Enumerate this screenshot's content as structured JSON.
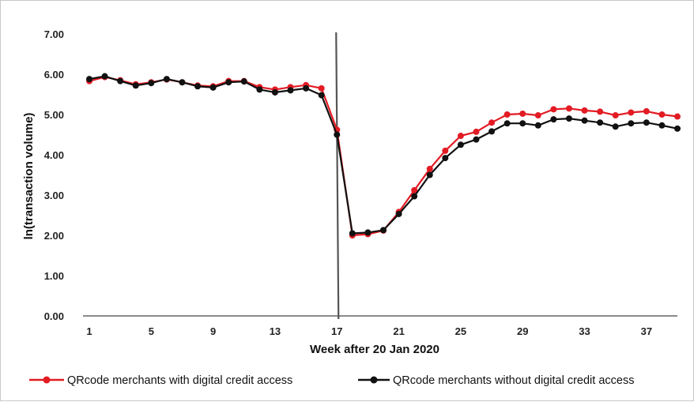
{
  "chart_data": {
    "type": "line",
    "xlabel": "Week after 20 Jan 2020",
    "ylabel": "ln(transaction volume)",
    "ylim": [
      0,
      7
    ],
    "xlim": [
      1,
      39
    ],
    "yticks": [
      "0.00",
      "1.00",
      "2.00",
      "3.00",
      "4.00",
      "5.00",
      "6.00",
      "7.00"
    ],
    "xticks": [
      "1",
      "5",
      "9",
      "13",
      "17",
      "21",
      "25",
      "29",
      "33",
      "37"
    ],
    "vertical_marker_week": 17,
    "grid": false,
    "legend_position": "bottom",
    "x": [
      1,
      2,
      3,
      4,
      5,
      6,
      7,
      8,
      9,
      10,
      11,
      12,
      13,
      14,
      15,
      16,
      17,
      18,
      19,
      20,
      21,
      22,
      23,
      24,
      25,
      26,
      27,
      28,
      29,
      30,
      31,
      32,
      33,
      34,
      35,
      36,
      37,
      38,
      39
    ],
    "series": [
      {
        "name": "QRcode merchants with digital credit access",
        "color": "#e31b23",
        "values": [
          5.83,
          5.93,
          5.85,
          5.75,
          5.8,
          5.87,
          5.8,
          5.72,
          5.7,
          5.83,
          5.83,
          5.68,
          5.62,
          5.68,
          5.73,
          5.65,
          4.62,
          2.0,
          2.03,
          2.12,
          2.58,
          3.12,
          3.65,
          4.1,
          4.47,
          4.57,
          4.8,
          5.0,
          5.02,
          4.98,
          5.13,
          5.15,
          5.1,
          5.07,
          4.98,
          5.05,
          5.08,
          5.0,
          4.95
        ]
      },
      {
        "name": "QRcode merchants without digital credit access",
        "color": "#111111",
        "values": [
          5.88,
          5.95,
          5.83,
          5.72,
          5.78,
          5.88,
          5.8,
          5.7,
          5.67,
          5.8,
          5.82,
          5.62,
          5.55,
          5.6,
          5.65,
          5.48,
          4.5,
          2.05,
          2.07,
          2.13,
          2.53,
          2.97,
          3.5,
          3.92,
          4.25,
          4.38,
          4.58,
          4.78,
          4.78,
          4.73,
          4.88,
          4.9,
          4.85,
          4.8,
          4.7,
          4.78,
          4.8,
          4.73,
          4.65
        ]
      }
    ]
  }
}
